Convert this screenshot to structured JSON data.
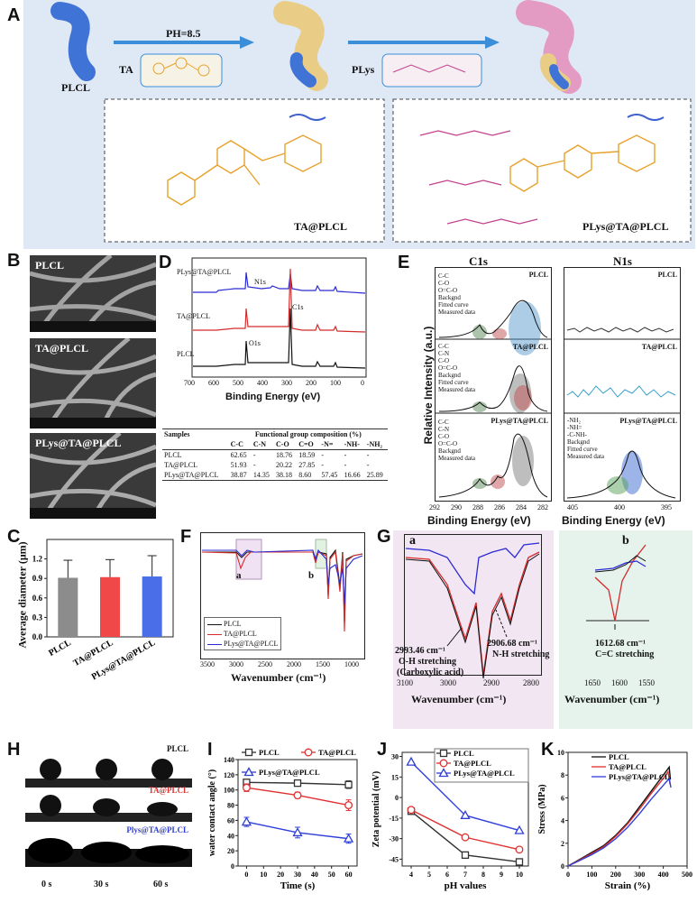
{
  "panels": {
    "A": "A",
    "B": "B",
    "C": "C",
    "D": "D",
    "E": "E",
    "F": "F",
    "G": "G",
    "H": "H",
    "I": "I",
    "J": "J",
    "K": "K"
  },
  "schematic": {
    "ph": "PH=8.5",
    "ta": "TA",
    "plys": "PLys",
    "plcl": "PLCL",
    "box_left": "TA@PLCL",
    "box_right": "PLys@TA@PLCL",
    "colors": {
      "background": "#dfe9f6",
      "fiber_blue": "#3f74d6",
      "ta_coat": "#e9cd86",
      "plys_coat": "#e39bc4",
      "arrow": "#3a8fd8",
      "ta_struct": "#e7a12b",
      "plys_struct": "#c2408c"
    }
  },
  "sem": {
    "labels": [
      "PLCL",
      "TA@PLCL",
      "PLys@TA@PLCL"
    ]
  },
  "xps_survey": {
    "traces": [
      "PLys@TA@PLCL",
      "TA@PLCL",
      "PLCL"
    ],
    "peaks": {
      "n1s": "N1s",
      "c1s": "C1s",
      "o1s": "O1s"
    },
    "xlabel": "Binding Energy (eV)",
    "xticks": [
      "700",
      "600",
      "500",
      "400",
      "300",
      "200",
      "100",
      "0"
    ]
  },
  "fg_table": {
    "col0": "Samples",
    "group_header": "Functional group composition (%)",
    "cols": [
      "C-C",
      "C-N",
      "C-O",
      "C=O",
      "-N=",
      "-NH-",
      "-NH₂"
    ],
    "rows": [
      {
        "name": "PLCL",
        "vals": [
          "62.65",
          "-",
          "18.76",
          "18.59",
          "-",
          "-",
          "-"
        ]
      },
      {
        "name": "TA@PLCL",
        "vals": [
          "51.93",
          "-",
          "20.22",
          "27.85",
          "-",
          "-",
          "-"
        ]
      },
      {
        "name": "PLys@TA@PLCL",
        "vals": [
          "38.87",
          "14.35",
          "38.18",
          "8.60",
          "57.45",
          "16.66",
          "25.89"
        ]
      }
    ]
  },
  "xps_hr": {
    "c1s_title": "C1s",
    "n1s_title": "N1s",
    "ylabel": "Relative Intensity (a.u.)",
    "xlabel": "Binding Energy (eV)",
    "c1s_xticks": [
      "292",
      "290",
      "288",
      "286",
      "284",
      "282"
    ],
    "n1s_xticks": [
      "405",
      "400",
      "395"
    ],
    "c1s_legend": [
      "C-C",
      "C-O",
      "O=C-O",
      "Backgnd",
      "Fitted curve",
      "Measured data"
    ],
    "c1s_legend_n": [
      "C-C",
      "C-N",
      "C-O",
      "O=C-O",
      "Backgnd",
      "Fitted curve",
      "Measured data"
    ],
    "n1s_legend": [
      "-NH₂",
      "-NH=",
      "-C-NH-",
      "Backgnd",
      "Fitted curve",
      "Measured data"
    ],
    "samples": [
      "PLCL",
      "TA@PLCL",
      "PLys@TA@PLCL"
    ]
  },
  "chart_data": [
    {
      "panel": "C",
      "type": "bar",
      "categories": [
        "PLCL",
        "TA@PLCL",
        "PLys@TA@PLCL"
      ],
      "values": [
        0.91,
        0.92,
        0.93
      ],
      "errors": [
        0.27,
        0.27,
        0.32
      ],
      "colors": [
        "#8c8c8c",
        "#f04848",
        "#4a6ee8"
      ],
      "ylabel": "Average diameter (μm)",
      "ylim": [
        0,
        1.5
      ],
      "yticks": [
        "0.0",
        "0.3",
        "0.6",
        "0.9",
        "1.2"
      ]
    },
    {
      "panel": "F",
      "type": "line",
      "xlabel": "Wavenumber (cm⁻¹)",
      "xticks": [
        "3500",
        "3000",
        "2500",
        "2000",
        "1500",
        "1000"
      ],
      "legend": [
        "PLCL",
        "TA@PLCL",
        "PLys@TA@PLCL"
      ],
      "annotations": [
        "a",
        "b"
      ]
    },
    {
      "panel": "G",
      "type": "line",
      "sub": [
        "a",
        "b"
      ],
      "xlabel": "Wavenumber (cm⁻¹)",
      "xticks_a": [
        "3100",
        "3000",
        "2900",
        "2800"
      ],
      "xticks_b": [
        "1650",
        "1600",
        "1550"
      ],
      "annotations": [
        "2993.46 cm⁻¹",
        "O-H stretching",
        "(Carboxylic acid)",
        "2906.68 cm⁻¹",
        "N-H stretching",
        "1612.68 cm⁻¹",
        "C=C stretching"
      ]
    },
    {
      "panel": "I",
      "type": "line",
      "x": [
        0,
        30,
        60
      ],
      "series": [
        {
          "name": "PLCL",
          "values": [
            110,
            109,
            107
          ],
          "errors": [
            4,
            4,
            5
          ],
          "color": "#333333",
          "marker": "square"
        },
        {
          "name": "TA@PLCL",
          "values": [
            103,
            93,
            80
          ],
          "errors": [
            5,
            4,
            7
          ],
          "color": "#e03030",
          "marker": "circle"
        },
        {
          "name": "PLys@TA@PLCL",
          "values": [
            58,
            44,
            36
          ],
          "errors": [
            6,
            7,
            6
          ],
          "color": "#2f3fd8",
          "marker": "triangle"
        }
      ],
      "xlabel": "Time (s)",
      "ylabel": "water contact angle (°)",
      "xlim": [
        -5,
        65
      ],
      "ylim": [
        0,
        140
      ],
      "xticks": [
        "0",
        "10",
        "20",
        "30",
        "40",
        "50",
        "60"
      ],
      "yticks": [
        "0",
        "20",
        "40",
        "60",
        "80",
        "100",
        "120",
        "140"
      ]
    },
    {
      "panel": "J",
      "type": "line",
      "x": [
        4,
        7,
        10
      ],
      "series": [
        {
          "name": "PLCL",
          "values": [
            -10,
            -42,
            -47
          ],
          "color": "#333333",
          "marker": "square"
        },
        {
          "name": "TA@PLCL",
          "values": [
            -9,
            -29,
            -38
          ],
          "color": "#e03030",
          "marker": "circle"
        },
        {
          "name": "PLys@TA@PLCL",
          "values": [
            26,
            -13,
            -24
          ],
          "color": "#2f3fd8",
          "marker": "triangle"
        }
      ],
      "xlabel": "pH values",
      "ylabel": "Zeta potential (mV)",
      "xlim": [
        3.5,
        10.5
      ],
      "ylim": [
        -50,
        33
      ],
      "xticks": [
        "4",
        "5",
        "6",
        "7",
        "8",
        "9",
        "10"
      ],
      "yticks": [
        "-45",
        "-30",
        "-15",
        "0",
        "15",
        "30"
      ]
    },
    {
      "panel": "K",
      "type": "line",
      "series": [
        {
          "name": "PLCL",
          "color": "#111111",
          "points": [
            [
              0,
              0
            ],
            [
              50,
              0.6
            ],
            [
              100,
              1.2
            ],
            [
              150,
              1.8
            ],
            [
              200,
              2.7
            ],
            [
              250,
              3.8
            ],
            [
              300,
              5.2
            ],
            [
              350,
              6.6
            ],
            [
              400,
              8.0
            ],
            [
              425,
              8.7
            ],
            [
              430,
              7.6
            ]
          ]
        },
        {
          "name": "TA@PLCL",
          "color": "#e03030",
          "points": [
            [
              0,
              0
            ],
            [
              50,
              0.55
            ],
            [
              100,
              1.1
            ],
            [
              150,
              1.7
            ],
            [
              200,
              2.6
            ],
            [
              250,
              3.7
            ],
            [
              300,
              5.0
            ],
            [
              350,
              6.4
            ],
            [
              400,
              7.7
            ],
            [
              420,
              8.3
            ],
            [
              428,
              7.2
            ]
          ]
        },
        {
          "name": "PLys@TA@PLCL",
          "color": "#2f3fd8",
          "points": [
            [
              0,
              0
            ],
            [
              50,
              0.5
            ],
            [
              100,
              1.0
            ],
            [
              150,
              1.6
            ],
            [
              200,
              2.4
            ],
            [
              250,
              3.4
            ],
            [
              300,
              4.6
            ],
            [
              350,
              5.9
            ],
            [
              400,
              7.1
            ],
            [
              425,
              7.7
            ],
            [
              432,
              6.9
            ]
          ]
        }
      ],
      "xlabel": "Strain (%)",
      "ylabel": "Stress (MPa)",
      "xlim": [
        0,
        500
      ],
      "ylim": [
        0,
        10
      ],
      "xticks": [
        "0",
        "100",
        "200",
        "300",
        "400",
        "500"
      ],
      "yticks": [
        "0",
        "2",
        "4",
        "6",
        "8",
        "10"
      ]
    }
  ],
  "contact_angle": {
    "labels": [
      "PLCL",
      "TA@PLCL",
      "Plys@TA@PLCL"
    ],
    "times": [
      "0 s",
      "30 s",
      "60 s"
    ]
  }
}
